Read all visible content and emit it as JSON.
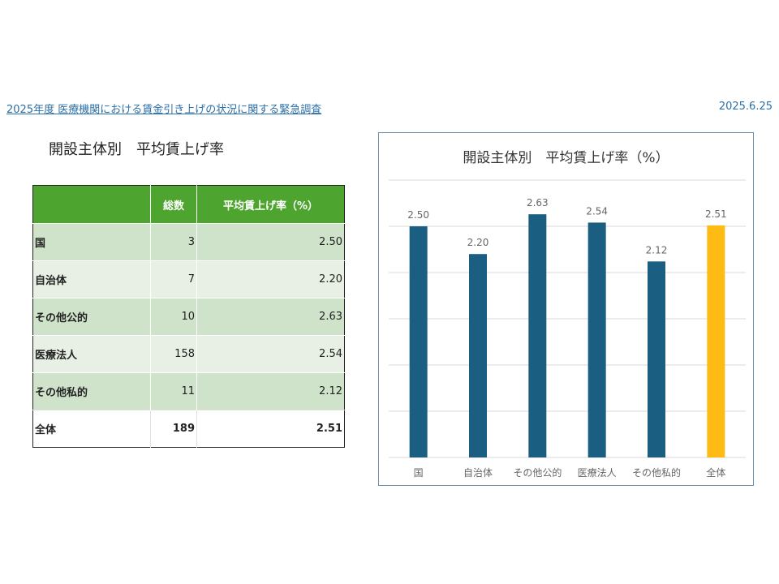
{
  "header": {
    "survey_title": "2025年度 医療機関における賃金引き上げの状況に関する緊急調査",
    "date": "2025.6.25"
  },
  "table": {
    "title": "開設主体別　平均賃上げ率",
    "columns": [
      "",
      "総数",
      "平均賃上げ率（%）"
    ],
    "rows": [
      {
        "label": "国",
        "count": "3",
        "rate": "2.50"
      },
      {
        "label": "自治体",
        "count": "7",
        "rate": "2.20"
      },
      {
        "label": "その他公的",
        "count": "10",
        "rate": "2.63"
      },
      {
        "label": "医療法人",
        "count": "158",
        "rate": "2.54"
      },
      {
        "label": "その他私的",
        "count": "11",
        "rate": "2.12"
      },
      {
        "label": "全体",
        "count": "189",
        "rate": "2.51"
      }
    ]
  },
  "chart_data": {
    "type": "bar",
    "title": "開設主体別　平均賃上げ率（%）",
    "categories": [
      "国",
      "自治体",
      "その他公的",
      "医療法人",
      "その他私的",
      "全体"
    ],
    "values": [
      2.5,
      2.2,
      2.63,
      2.54,
      2.12,
      2.51
    ],
    "data_labels": [
      "2.50",
      "2.20",
      "2.63",
      "2.54",
      "2.12",
      "2.51"
    ],
    "ylim": [
      0,
      3.0
    ],
    "grid": true,
    "colors": {
      "bar": "#1a5e82",
      "highlight": "#fdbb13",
      "gridline": "#d9d9d9",
      "label": "#666666"
    },
    "highlight_category": "全体"
  }
}
